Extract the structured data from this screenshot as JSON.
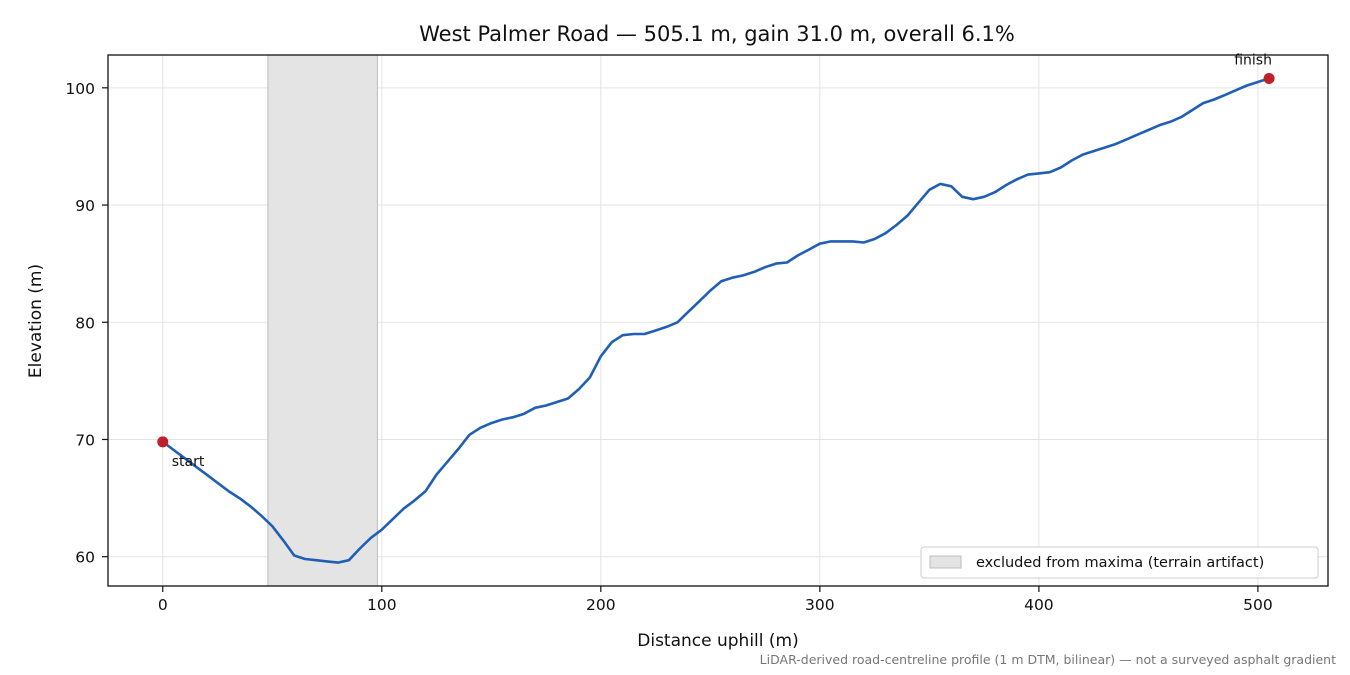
{
  "chart_data": {
    "type": "line",
    "title": "West Palmer Road — 505.1 m, gain 31.0 m, overall 6.1%",
    "xlabel": "Distance uphill (m)",
    "ylabel": "Elevation (m)",
    "xlim": [
      -25,
      532
    ],
    "ylim": [
      57.5,
      102.8
    ],
    "xticks": [
      0,
      100,
      200,
      300,
      400,
      500
    ],
    "yticks": [
      60,
      70,
      80,
      90,
      100
    ],
    "grid": true,
    "legend_position": "lower-right",
    "colors": {
      "line": "#1f5fb4",
      "marker": "#c0202a",
      "band": "#e4e4e4",
      "band_edge": "#bdbdbd"
    },
    "excluded_band": {
      "x_start": 48,
      "x_end": 98,
      "label": "excluded from maxima (terrain artifact)"
    },
    "annotations": [
      {
        "text": "start",
        "x": 0,
        "y": 69.8
      },
      {
        "text": "finish",
        "x": 505.1,
        "y": 100.8
      }
    ],
    "series": [
      {
        "x": [
          0,
          5,
          10,
          15,
          20,
          25,
          30,
          35,
          40,
          45,
          50,
          55,
          60,
          65,
          70,
          75,
          80,
          85,
          90,
          95,
          100,
          105,
          110,
          115,
          120,
          125,
          130,
          135,
          140,
          145,
          150,
          155,
          160,
          165,
          170,
          175,
          180,
          185,
          190,
          195,
          200,
          205,
          210,
          215,
          220,
          225,
          230,
          235,
          240,
          245,
          250,
          255,
          260,
          265,
          270,
          275,
          280,
          285,
          290,
          295,
          300,
          305,
          310,
          315,
          320,
          325,
          330,
          335,
          340,
          345,
          350,
          355,
          360,
          365,
          370,
          375,
          380,
          385,
          390,
          395,
          400,
          405,
          410,
          415,
          420,
          425,
          430,
          435,
          440,
          445,
          450,
          455,
          460,
          465,
          470,
          475,
          480,
          485,
          490,
          495,
          500,
          505.1
        ],
        "y": [
          69.8,
          69.1,
          68.4,
          67.7,
          67.0,
          66.3,
          65.6,
          65.0,
          64.3,
          63.5,
          62.6,
          61.4,
          60.1,
          59.8,
          59.7,
          59.6,
          59.5,
          59.7,
          60.7,
          61.6,
          62.3,
          63.2,
          64.1,
          64.8,
          65.6,
          67.0,
          68.1,
          69.2,
          70.4,
          71.0,
          71.4,
          71.7,
          71.9,
          72.2,
          72.7,
          72.9,
          73.2,
          73.5,
          74.3,
          75.3,
          77.1,
          78.3,
          78.9,
          79.0,
          79.0,
          79.3,
          79.6,
          80.0,
          80.9,
          81.8,
          82.7,
          83.5,
          83.8,
          84.0,
          84.3,
          84.7,
          85.0,
          85.1,
          85.7,
          86.2,
          86.7,
          86.9,
          86.9,
          86.9,
          86.8,
          87.1,
          87.6,
          88.3,
          89.1,
          90.2,
          91.3,
          91.8,
          91.6,
          90.7,
          90.5,
          90.7,
          91.1,
          91.7,
          92.2,
          92.6,
          92.7,
          92.8,
          93.2,
          93.8,
          94.3,
          94.6,
          94.9,
          95.2,
          95.6,
          96.0,
          96.4,
          96.8,
          97.1,
          97.5,
          98.1,
          98.7,
          99.0,
          99.4,
          99.8,
          100.2,
          100.5,
          100.8
        ]
      }
    ],
    "footnote": "LiDAR-derived road-centreline profile (1 m DTM, bilinear) — not a surveyed asphalt gradient"
  }
}
